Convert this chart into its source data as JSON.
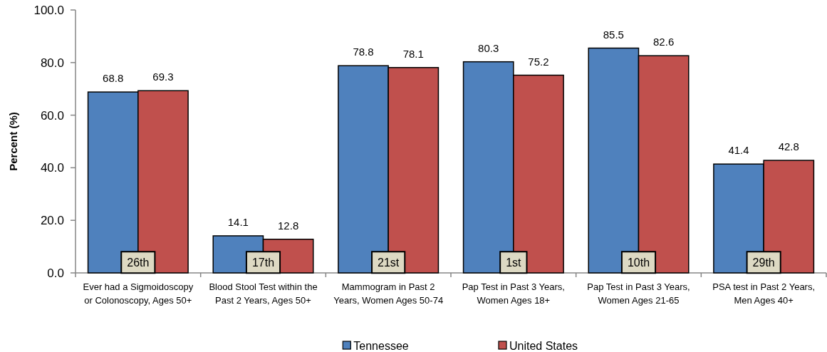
{
  "chart_data": {
    "type": "bar",
    "ylabel": "Percent (%)",
    "categories": [
      "Ever had a Sigmoidoscopy or Colonoscopy, Ages 50+",
      "Blood Stool Test within the Past 2 Years, Ages 50+",
      "Mammogram in Past 2 Years, Women Ages 50-74",
      "Pap Test in Past 3 Years, Women Ages 18+",
      "Pap Test in Past 3 Years, Women Ages 21-65",
      "PSA test in Past 2 Years, Men Ages 40+"
    ],
    "series": [
      {
        "name": "Tennessee",
        "color": "#4f81bd",
        "values": [
          68.8,
          14.1,
          78.8,
          80.3,
          85.5,
          41.4
        ]
      },
      {
        "name": "United States",
        "color": "#c0504d",
        "values": [
          69.3,
          12.8,
          78.1,
          75.2,
          82.6,
          42.8
        ]
      }
    ],
    "ylim": [
      0,
      100
    ],
    "yticks": [
      {
        "value": 0,
        "label": "0.0"
      },
      {
        "value": 20,
        "label": "20.0"
      },
      {
        "value": 40,
        "label": "40.0"
      },
      {
        "value": 60,
        "label": "60.0"
      },
      {
        "value": 80,
        "label": "80.0"
      },
      {
        "value": 100,
        "label": "100.0"
      }
    ],
    "data_labels": true,
    "legend": "bottom",
    "annotations": [
      {
        "text": "26th",
        "x": "Ever had a Sigmoidoscopy or Colonoscopy, Ages 50+",
        "y": 4
      },
      {
        "text": "17th",
        "x": "Blood Stool Test within the Past 2 Years, Ages 50+",
        "y": 4
      },
      {
        "text": "21st",
        "x": "Mammogram in Past 2 Years, Women Ages 50-74",
        "y": 4
      },
      {
        "text": "1st",
        "x": "Pap Test in Past 3 Years, Women Ages 18+",
        "y": 4
      },
      {
        "text": "10th",
        "x": "Pap Test in Past 3 Years, Women Ages 21-65",
        "y": 4
      },
      {
        "text": "29th",
        "x": "PSA test in Past 2 Years, Men Ages 40+",
        "y": 4
      }
    ]
  }
}
